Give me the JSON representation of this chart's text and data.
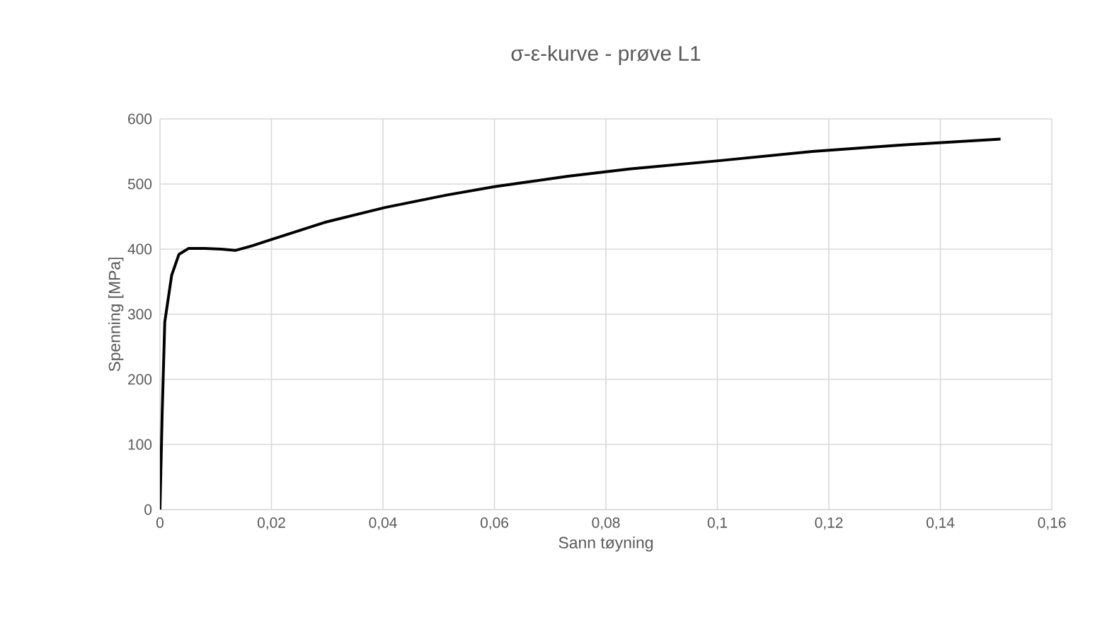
{
  "chart_data": {
    "type": "line",
    "title": "σ-ε-kurve - prøve L1",
    "xlabel": "Sann tøyning",
    "ylabel": "Spenning [MPa]",
    "x": [
      0,
      0.0004,
      0.00086,
      0.0021,
      0.0034,
      0.0051,
      0.008,
      0.011,
      0.0135,
      0.0165,
      0.0197,
      0.0295,
      0.0404,
      0.0514,
      0.06,
      0.0732,
      0.0842,
      0.1005,
      0.117,
      0.1333,
      0.1508
    ],
    "series": [
      {
        "color": "#000000",
        "values": [
          0,
          150,
          288,
          360,
          392,
          401,
          401,
          400,
          398,
          405,
          414,
          441,
          464,
          483,
          496,
          512,
          523,
          536,
          550,
          560,
          569
        ]
      }
    ],
    "xlim": [
      0,
      0.16
    ],
    "ylim": [
      0,
      600
    ],
    "xticks": [
      0,
      {
        "value": 0.02,
        "label": "0,02"
      },
      {
        "value": 0.04,
        "label": "0,04"
      },
      {
        "value": 0.06,
        "label": "0,06"
      },
      {
        "value": 0.08,
        "label": "0,08"
      },
      {
        "value": 0.1,
        "label": "0,1"
      },
      {
        "value": 0.12,
        "label": "0,12"
      },
      {
        "value": 0.14,
        "label": "0,14"
      },
      {
        "value": 0.16,
        "label": "0,16"
      }
    ],
    "yticks": [
      0,
      100,
      200,
      300,
      400,
      500,
      600
    ],
    "grid": true
  }
}
